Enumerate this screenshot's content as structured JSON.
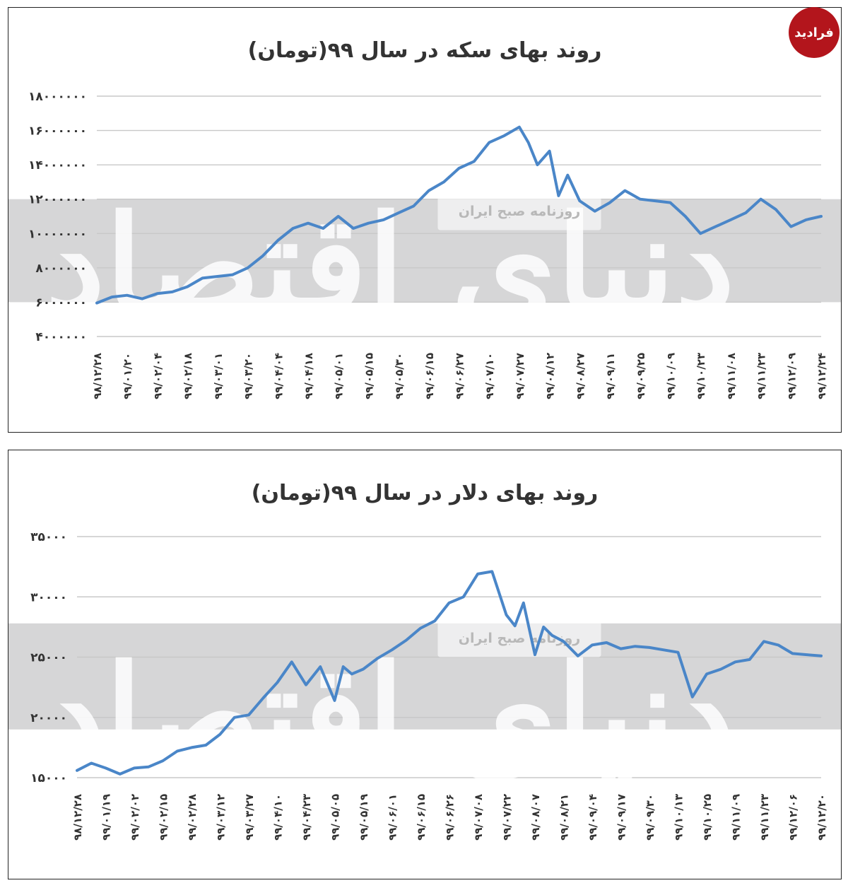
{
  "logo": {
    "text": "فرادید"
  },
  "watermarks": {
    "brand": "دنیای اقتصاد",
    "source": "روزنامه صبح ایران"
  },
  "chart_data": [
    {
      "type": "line",
      "title": "روند بهای سکه در سال ۹۹(تومان)",
      "ylim": [
        4000000,
        18000000
      ],
      "yticks": [
        4000000,
        6000000,
        8000000,
        10000000,
        12000000,
        14000000,
        16000000,
        18000000
      ],
      "ytick_labels": [
        "۴۰۰۰۰۰۰",
        "۶۰۰۰۰۰۰",
        "۸۰۰۰۰۰۰",
        "۱۰۰۰۰۰۰۰",
        "۱۲۰۰۰۰۰۰",
        "۱۴۰۰۰۰۰۰",
        "۱۶۰۰۰۰۰۰",
        "۱۸۰۰۰۰۰۰"
      ],
      "band": [
        6000000,
        12000000
      ],
      "grid": true,
      "categories": [
        "۹۸/۱۲/۲۸",
        "۹۹/۰۱/۲۰",
        "۹۹/۰۲/۰۴",
        "۹۹/۰۲/۱۸",
        "۹۹/۰۳/۰۱",
        "۹۹/۰۳/۲۰",
        "۹۹/۰۴/۰۴",
        "۹۹/۰۴/۱۸",
        "۹۹/۰۵/۰۱",
        "۹۹/۰۵/۱۵",
        "۹۹/۰۵/۳۰",
        "۹۹/۰۶/۱۵",
        "۹۹/۰۶/۲۷",
        "۹۹/۰۷/۱۰",
        "۹۹/۰۷/۲۷",
        "۹۹/۰۸/۱۲",
        "۹۹/۰۸/۲۷",
        "۹۹/۰۹/۱۱",
        "۹۹/۰۹/۲۵",
        "۹۹/۱۰/۰۹",
        "۹۹/۱۰/۲۳",
        "۹۹/۱۱/۰۸",
        "۹۹/۱۱/۲۳",
        "۹۹/۱۲/۰۹",
        "۹۹/۱۲/۲۴"
      ],
      "x": [
        0,
        0.5,
        1,
        1.5,
        2,
        2.5,
        3,
        3.5,
        4,
        4.5,
        5,
        5.5,
        6,
        6.5,
        7,
        7.5,
        8,
        8.5,
        9,
        9.5,
        10,
        10.5,
        11,
        11.5,
        12,
        12.5,
        13,
        13.5,
        14,
        14.3,
        14.6,
        15,
        15.3,
        15.6,
        16,
        16.5,
        17,
        17.5,
        18,
        18.5,
        19,
        19.5,
        20,
        20.5,
        21,
        21.5,
        22,
        22.5,
        23,
        23.5,
        24
      ],
      "values": [
        5950000,
        6300000,
        6400000,
        6200000,
        6500000,
        6600000,
        6900000,
        7400000,
        7500000,
        7600000,
        8000000,
        8700000,
        9600000,
        10300000,
        10600000,
        10300000,
        11000000,
        10300000,
        10600000,
        10800000,
        11200000,
        11600000,
        12500000,
        13000000,
        13800000,
        14200000,
        15300000,
        15700000,
        16200000,
        15300000,
        14000000,
        14800000,
        12200000,
        13400000,
        11900000,
        11300000,
        11800000,
        12500000,
        12000000,
        11900000,
        11800000,
        11000000,
        10000000,
        10400000,
        10800000,
        11200000,
        12000000,
        11400000,
        10400000,
        10800000,
        11000000
      ]
    },
    {
      "type": "line",
      "title": "روند بهای دلار در سال ۹۹(تومان)",
      "ylim": [
        15000,
        35000
      ],
      "yticks": [
        15000,
        20000,
        25000,
        30000,
        35000
      ],
      "ytick_labels": [
        "۱۵۰۰۰",
        "۲۰۰۰۰",
        "۲۵۰۰۰",
        "۳۰۰۰۰",
        "۳۵۰۰۰"
      ],
      "band": [
        19000,
        27800
      ],
      "grid": true,
      "categories": [
        "۹۸/۱۲/۲۸",
        "۹۹/۰۱/۱۹",
        "۹۹/۰۲/۰۲",
        "۹۹/۰۲/۱۵",
        "۹۹/۰۲/۲۸",
        "۹۹/۰۳/۱۲",
        "۹۹/۰۳/۲۷",
        "۹۹/۰۴/۱۰",
        "۹۹/۰۴/۲۳",
        "۹۹/۰۵/۰۵",
        "۹۹/۰۵/۱۹",
        "۹۹/۰۶/۰۱",
        "۹۹/۰۶/۱۵",
        "۹۹/۰۶/۲۶",
        "۹۹/۰۷/۰۸",
        "۹۹/۰۷/۲۲",
        "۹۹/۰۸/۰۷",
        "۹۹/۰۸/۲۱",
        "۹۹/۰۹/۰۴",
        "۹۹/۰۹/۱۷",
        "۹۹/۰۹/۳۰",
        "۹۹/۱۰/۱۳",
        "۹۹/۱۰/۲۵",
        "۹۹/۱۱/۰۹",
        "۹۹/۱۱/۲۳",
        "۹۹/۱۲/۰۶",
        "۹۹/۱۲/۲۰"
      ],
      "x": [
        0,
        0.5,
        1,
        1.5,
        2,
        2.5,
        3,
        3.5,
        4,
        4.5,
        5,
        5.5,
        6,
        6.5,
        7,
        7.5,
        8,
        8.5,
        9,
        9.3,
        9.6,
        10,
        10.5,
        11,
        11.5,
        12,
        12.5,
        13,
        13.5,
        14,
        14.5,
        15,
        15.3,
        15.6,
        16,
        16.3,
        16.6,
        17,
        17.5,
        18,
        18.5,
        19,
        19.5,
        20,
        20.5,
        21,
        21.5,
        22,
        22.5,
        23,
        23.5,
        24,
        24.5,
        25,
        25.5,
        26
      ],
      "values": [
        15600,
        16200,
        15800,
        15300,
        15800,
        15900,
        16400,
        17200,
        17500,
        17700,
        18600,
        20000,
        20200,
        21600,
        22900,
        24600,
        22700,
        24200,
        21400,
        24200,
        23600,
        24000,
        24900,
        25600,
        26400,
        27400,
        28000,
        29500,
        30000,
        31900,
        32100,
        28500,
        27600,
        29500,
        25200,
        27500,
        26800,
        26300,
        25100,
        26000,
        26200,
        25700,
        25900,
        25800,
        25600,
        25400,
        21700,
        23600,
        24000,
        24600,
        24800,
        26300,
        26000,
        25300,
        25200,
        25100
      ]
    }
  ]
}
